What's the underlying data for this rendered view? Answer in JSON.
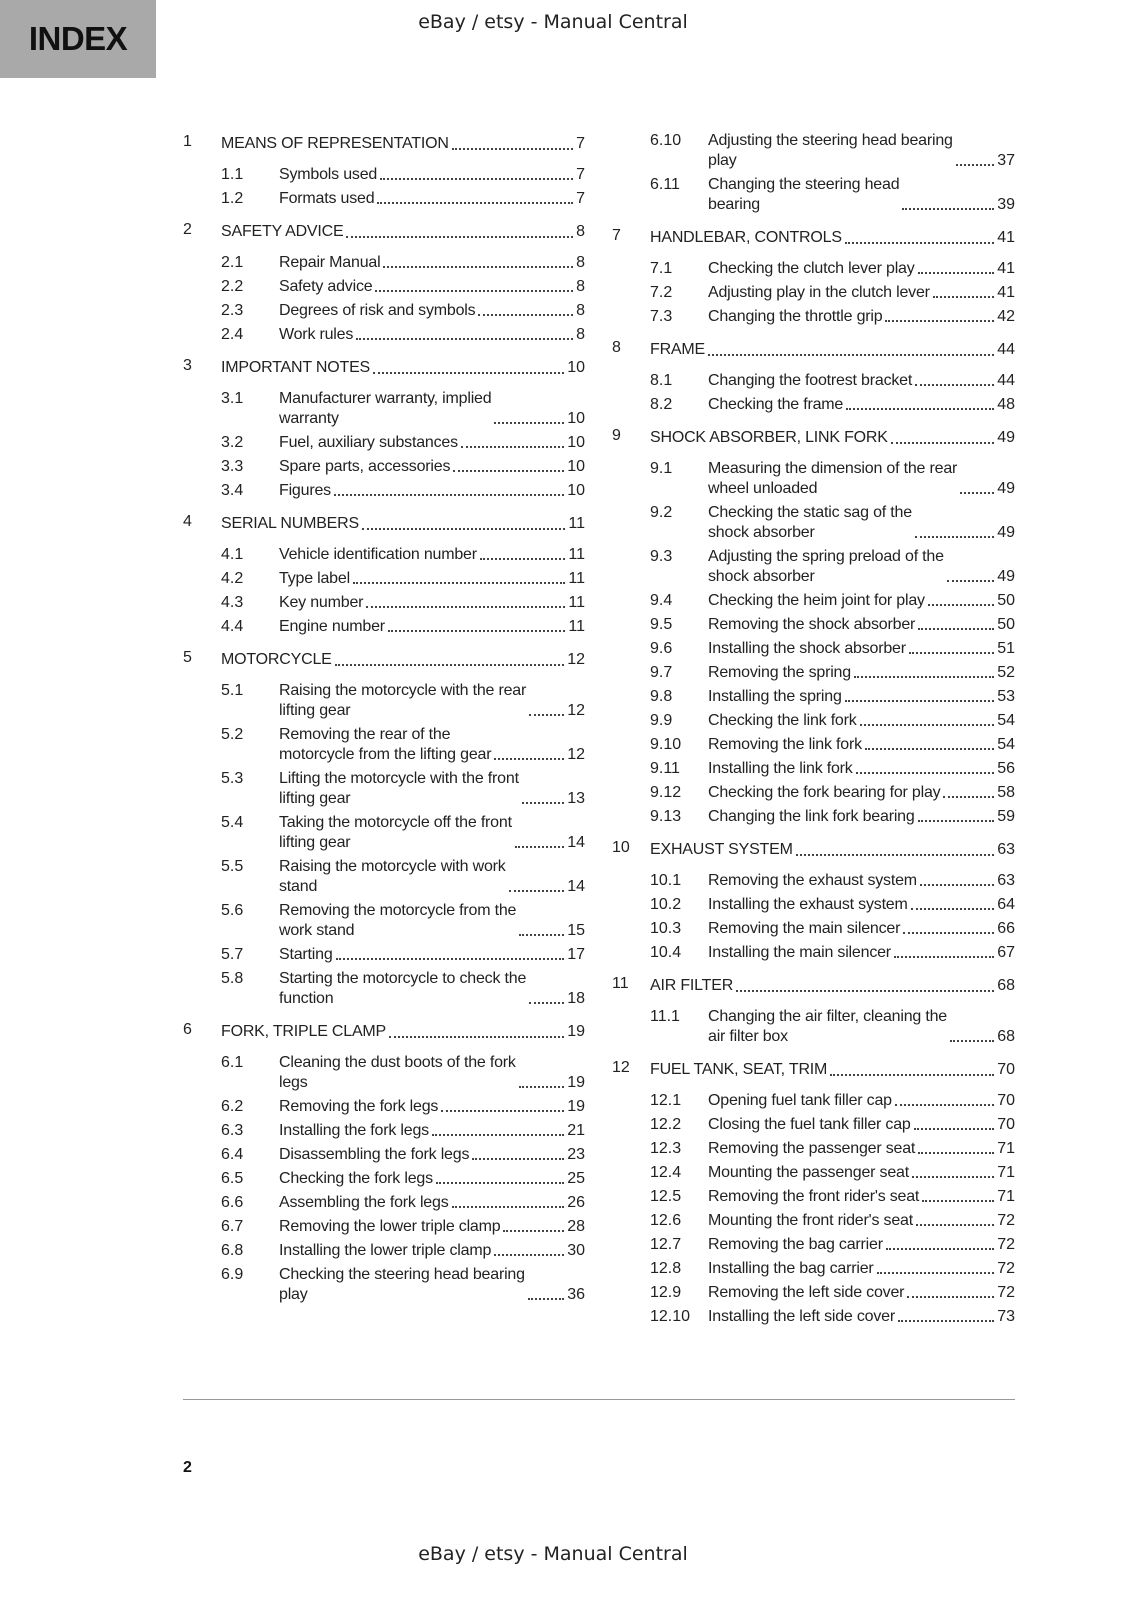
{
  "header": {
    "index_label": "INDEX",
    "watermark": "eBay / etsy - Manual Central"
  },
  "footer": {
    "page_number": "2",
    "watermark": "eBay / etsy - Manual Central"
  },
  "toc": {
    "left": [
      {
        "num": "1",
        "title": "MEANS OF REPRESENTATION",
        "page": "7",
        "subs": [
          {
            "num": "1.1",
            "title": "Symbols used",
            "page": "7"
          },
          {
            "num": "1.2",
            "title": "Formats used",
            "page": "7"
          }
        ]
      },
      {
        "num": "2",
        "title": "SAFETY ADVICE",
        "page": "8",
        "subs": [
          {
            "num": "2.1",
            "title": "Repair Manual",
            "page": "8"
          },
          {
            "num": "2.2",
            "title": "Safety advice",
            "page": "8"
          },
          {
            "num": "2.3",
            "title": "Degrees of risk and symbols",
            "page": "8"
          },
          {
            "num": "2.4",
            "title": "Work rules",
            "page": "8"
          }
        ]
      },
      {
        "num": "3",
        "title": "IMPORTANT NOTES",
        "page": "10",
        "subs": [
          {
            "num": "3.1",
            "title": "Manufacturer warranty, implied\nwarranty",
            "page": "10"
          },
          {
            "num": "3.2",
            "title": "Fuel, auxiliary substances",
            "page": "10"
          },
          {
            "num": "3.3",
            "title": "Spare parts, accessories",
            "page": "10"
          },
          {
            "num": "3.4",
            "title": "Figures",
            "page": "10"
          }
        ]
      },
      {
        "num": "4",
        "title": "SERIAL NUMBERS",
        "page": "11",
        "subs": [
          {
            "num": "4.1",
            "title": "Vehicle identification number",
            "page": "11"
          },
          {
            "num": "4.2",
            "title": "Type label",
            "page": "11"
          },
          {
            "num": "4.3",
            "title": "Key number",
            "page": "11"
          },
          {
            "num": "4.4",
            "title": "Engine number",
            "page": "11"
          }
        ]
      },
      {
        "num": "5",
        "title": "MOTORCYCLE",
        "page": "12",
        "subs": [
          {
            "num": "5.1",
            "title": "Raising the motorcycle with the rear\nlifting gear",
            "page": "12"
          },
          {
            "num": "5.2",
            "title": "Removing the rear of the\nmotorcycle from the lifting gear",
            "page": "12"
          },
          {
            "num": "5.3",
            "title": "Lifting the motorcycle with the front\nlifting gear",
            "page": "13"
          },
          {
            "num": "5.4",
            "title": "Taking the motorcycle off the front\nlifting gear",
            "page": "14"
          },
          {
            "num": "5.5",
            "title": "Raising the motorcycle with work\nstand",
            "page": "14"
          },
          {
            "num": "5.6",
            "title": "Removing the motorcycle from the\nwork stand",
            "page": "15"
          },
          {
            "num": "5.7",
            "title": "Starting",
            "page": "17"
          },
          {
            "num": "5.8",
            "title": "Starting the motorcycle to check the\nfunction",
            "page": "18"
          }
        ]
      },
      {
        "num": "6",
        "title": "FORK, TRIPLE CLAMP",
        "page": "19",
        "subs": [
          {
            "num": "6.1",
            "title": "Cleaning the dust boots of the fork\nlegs",
            "page": "19"
          },
          {
            "num": "6.2",
            "title": "Removing the fork legs",
            "page": "19"
          },
          {
            "num": "6.3",
            "title": "Installing the fork legs",
            "page": "21"
          },
          {
            "num": "6.4",
            "title": "Disassembling the fork legs",
            "page": "23"
          },
          {
            "num": "6.5",
            "title": "Checking the fork legs",
            "page": "25"
          },
          {
            "num": "6.6",
            "title": "Assembling the fork legs",
            "page": "26"
          },
          {
            "num": "6.7",
            "title": "Removing the lower triple clamp",
            "page": "28"
          },
          {
            "num": "6.8",
            "title": "Installing the lower triple clamp",
            "page": "30"
          },
          {
            "num": "6.9",
            "title": "Checking the steering head bearing\nplay",
            "page": "36"
          }
        ]
      }
    ],
    "right": [
      {
        "subs": [
          {
            "num": "6.10",
            "title": "Adjusting the steering head bearing\nplay",
            "page": "37"
          },
          {
            "num": "6.11",
            "title": "Changing the steering head\nbearing",
            "page": "39"
          }
        ]
      },
      {
        "num": "7",
        "title": "HANDLEBAR, CONTROLS",
        "page": "41",
        "subs": [
          {
            "num": "7.1",
            "title": "Checking the clutch lever play",
            "page": "41"
          },
          {
            "num": "7.2",
            "title": "Adjusting play in the clutch lever",
            "page": "41"
          },
          {
            "num": "7.3",
            "title": "Changing the throttle grip",
            "page": "42"
          }
        ]
      },
      {
        "num": "8",
        "title": "FRAME",
        "page": "44",
        "subs": [
          {
            "num": "8.1",
            "title": "Changing the footrest bracket",
            "page": "44"
          },
          {
            "num": "8.2",
            "title": "Checking the frame",
            "page": "48"
          }
        ]
      },
      {
        "num": "9",
        "title": "SHOCK ABSORBER, LINK FORK",
        "page": "49",
        "subs": [
          {
            "num": "9.1",
            "title": "Measuring the dimension of the rear\nwheel unloaded",
            "page": "49"
          },
          {
            "num": "9.2",
            "title": "Checking the static sag of the\nshock absorber",
            "page": "49"
          },
          {
            "num": "9.3",
            "title": "Adjusting the spring preload of the\nshock absorber",
            "page": "49"
          },
          {
            "num": "9.4",
            "title": "Checking the heim joint for play",
            "page": "50"
          },
          {
            "num": "9.5",
            "title": "Removing the shock absorber",
            "page": "50"
          },
          {
            "num": "9.6",
            "title": "Installing the shock absorber",
            "page": "51"
          },
          {
            "num": "9.7",
            "title": "Removing the spring",
            "page": "52"
          },
          {
            "num": "9.8",
            "title": "Installing the spring",
            "page": "53"
          },
          {
            "num": "9.9",
            "title": "Checking the link fork",
            "page": "54"
          },
          {
            "num": "9.10",
            "title": "Removing the link fork",
            "page": "54"
          },
          {
            "num": "9.11",
            "title": "Installing the link fork",
            "page": "56"
          },
          {
            "num": "9.12",
            "title": "Checking the fork bearing for play",
            "page": "58"
          },
          {
            "num": "9.13",
            "title": "Changing the link fork bearing",
            "page": "59"
          }
        ]
      },
      {
        "num": "10",
        "title": "EXHAUST SYSTEM",
        "page": "63",
        "subs": [
          {
            "num": "10.1",
            "title": "Removing the exhaust system",
            "page": "63"
          },
          {
            "num": "10.2",
            "title": "Installing the exhaust system",
            "page": "64"
          },
          {
            "num": "10.3",
            "title": "Removing the main silencer",
            "page": "66"
          },
          {
            "num": "10.4",
            "title": "Installing the main silencer",
            "page": "67"
          }
        ]
      },
      {
        "num": "11",
        "title": "AIR FILTER",
        "page": "68",
        "subs": [
          {
            "num": "11.1",
            "title": "Changing the air filter, cleaning the\nair filter box",
            "page": "68"
          }
        ]
      },
      {
        "num": "12",
        "title": "FUEL TANK, SEAT, TRIM",
        "page": "70",
        "subs": [
          {
            "num": "12.1",
            "title": "Opening fuel tank filler cap",
            "page": "70"
          },
          {
            "num": "12.2",
            "title": "Closing the fuel tank filler cap",
            "page": "70"
          },
          {
            "num": "12.3",
            "title": "Removing the passenger seat",
            "page": "71"
          },
          {
            "num": "12.4",
            "title": "Mounting the passenger seat",
            "page": "71"
          },
          {
            "num": "12.5",
            "title": "Removing the front rider's seat",
            "page": "71"
          },
          {
            "num": "12.6",
            "title": "Mounting the front rider's seat",
            "page": "72"
          },
          {
            "num": "12.7",
            "title": "Removing the bag carrier",
            "page": "72"
          },
          {
            "num": "12.8",
            "title": "Installing the bag carrier",
            "page": "72"
          },
          {
            "num": "12.9",
            "title": "Removing the left side cover",
            "page": "72"
          },
          {
            "num": "12.10",
            "title": "Installing the left side cover",
            "page": "73"
          }
        ]
      }
    ]
  }
}
